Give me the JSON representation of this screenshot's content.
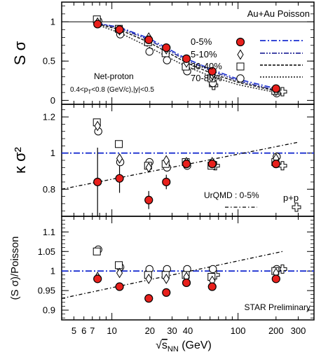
{
  "chart_data": {
    "type": "scatter",
    "x_axis": {
      "label_root": "√",
      "label_s": "s",
      "label_sub": "NN",
      "label_unit": "(GeV)",
      "scale": "log",
      "range": [
        4,
        400
      ],
      "ticks": [
        5,
        6,
        7,
        10,
        20,
        30,
        40,
        100,
        200,
        300
      ],
      "tick_labels": [
        "5",
        "6",
        "7",
        "10",
        "20",
        "30",
        "40",
        "100",
        "200",
        "300"
      ]
    },
    "panels": [
      {
        "id": "s-sigma",
        "ylabel": "S σ",
        "ylim": [
          -0.05,
          1.25
        ],
        "yticks": [
          0,
          0.5,
          1
        ],
        "ytick_labels": [
          "0",
          "0.5",
          "1"
        ],
        "reference_line": {
          "y": 1.0,
          "name": "Poisson",
          "color": "#000000"
        },
        "annotations": {
          "system": "Au+Au Poisson",
          "particle": "Net-proton",
          "cuts": "0.4<pT<0.8 (GeV/c),|y|<0.5"
        },
        "legend": {
          "entries": [
            "0-5%",
            "5-10%",
            "30-40%",
            "70-80%"
          ],
          "markers": [
            "filled-circle",
            "diamond",
            "square",
            "open-circle"
          ],
          "poisson_styles": [
            "dash-dot-blue",
            "dash-dot-dot",
            "dashed",
            "dotted"
          ]
        },
        "series": [
          {
            "name": "0-5%",
            "marker": "filled-circle",
            "x": [
              7.7,
              11.5,
              19.6,
              27,
              39,
              62.4,
              200
            ],
            "y": [
              0.97,
              0.9,
              0.77,
              0.67,
              0.53,
              0.37,
              0.15
            ]
          },
          {
            "name": "5-10%",
            "marker": "diamond",
            "x": [
              7.7,
              11.5,
              19.6,
              27,
              39,
              62.4,
              200
            ],
            "y": [
              0.99,
              0.89,
              0.8,
              0.65,
              0.48,
              0.32,
              0.12
            ]
          },
          {
            "name": "30-40%",
            "marker": "square",
            "x": [
              7.7,
              11.5,
              19.6,
              27,
              39,
              62.4,
              200
            ],
            "y": [
              1.03,
              0.91,
              0.74,
              0.6,
              0.43,
              0.28,
              0.12
            ]
          },
          {
            "name": "70-80%",
            "marker": "open-circle",
            "x": [
              7.7,
              11.5,
              19.6,
              27,
              39,
              62.4,
              200
            ],
            "y": [
              1.01,
              0.84,
              0.62,
              0.51,
              0.37,
              0.22,
              0.09
            ]
          },
          {
            "name": "p+p",
            "marker": "cross",
            "x": [
              64,
              225
            ],
            "y": [
              0.19,
              0.11
            ]
          }
        ],
        "poisson_curves": [
          {
            "style": "dash-dot-blue",
            "x": [
              7.7,
              11.5,
              19.6,
              27,
              39,
              62.4,
              100,
              200
            ],
            "y": [
              0.98,
              0.93,
              0.79,
              0.67,
              0.53,
              0.39,
              0.27,
              0.15
            ]
          },
          {
            "style": "dash-dot-dot",
            "x": [
              7.7,
              11.5,
              19.6,
              27,
              39,
              62.4,
              100,
              200
            ],
            "y": [
              0.98,
              0.92,
              0.77,
              0.65,
              0.51,
              0.37,
              0.25,
              0.13
            ]
          },
          {
            "style": "dashed",
            "x": [
              7.7,
              11.5,
              19.6,
              27,
              39,
              62.4,
              100,
              200
            ],
            "y": [
              0.97,
              0.9,
              0.74,
              0.62,
              0.48,
              0.34,
              0.23,
              0.12
            ]
          },
          {
            "style": "dotted",
            "x": [
              7.7,
              11.5,
              19.6,
              27,
              39,
              62.4,
              100,
              200
            ],
            "y": [
              0.96,
              0.86,
              0.68,
              0.56,
              0.43,
              0.3,
              0.2,
              0.1
            ]
          }
        ]
      },
      {
        "id": "kappa-sigma2",
        "ylabel": "κ σ²",
        "ylim": [
          0.65,
          1.27
        ],
        "yticks": [
          0.8,
          1.0,
          1.2
        ],
        "ytick_labels": [
          "0.8",
          "1",
          "1.2"
        ],
        "reference_line": {
          "y": 1.0,
          "name": "Poisson",
          "color": "#1a2fd0"
        },
        "annotations": {
          "urqmd": "UrQMD : 0-5%",
          "pp": "p+p"
        },
        "series": [
          {
            "name": "0-5%",
            "marker": "filled-circle",
            "x": [
              7.7,
              11.5,
              19.6,
              27,
              39,
              62.4,
              200
            ],
            "y": [
              0.84,
              0.86,
              0.74,
              0.84,
              0.94,
              0.94,
              0.94
            ]
          },
          {
            "name": "5-10%",
            "marker": "diamond",
            "x": [
              7.7,
              11.5,
              19.6,
              27,
              39,
              62.4,
              200
            ],
            "y": [
              1.15,
              0.97,
              0.92,
              0.96,
              0.95,
              0.95,
              0.97
            ]
          },
          {
            "name": "30-40%",
            "marker": "square",
            "x": [
              7.7,
              11.5,
              19.6,
              27,
              39,
              62.4,
              200
            ],
            "y": [
              1.17,
              1.05,
              0.93,
              0.94,
              0.95,
              0.93,
              0.95
            ]
          },
          {
            "name": "70-80%",
            "marker": "open-circle",
            "x": [
              7.7,
              11.5,
              19.6,
              27,
              39,
              62.4,
              200
            ],
            "y": [
              1.12,
              0.95,
              0.95,
              0.92,
              0.93,
              0.94,
              0.98
            ]
          },
          {
            "name": "p+p",
            "marker": "cross",
            "x": [
              66,
              225
            ],
            "y": [
              0.93,
              0.93
            ]
          }
        ],
        "error_bars_0_5": [
          0.19,
          0.08,
          0.05,
          0.04,
          0.03,
          0.03,
          0.02
        ],
        "urqmd_line": {
          "x": [
            4,
            300
          ],
          "y": [
            0.8,
            1.06
          ]
        }
      },
      {
        "id": "s-sigma-over-poisson",
        "ylabel": "(S σ)/Poisson",
        "ylim": [
          0.875,
          1.14
        ],
        "yticks": [
          0.9,
          0.95,
          1.0,
          1.05,
          1.1
        ],
        "ytick_labels": [
          "0.9",
          "0.95",
          "1",
          "1.05",
          "1.1"
        ],
        "reference_line": {
          "y": 1.0,
          "name": "Poisson",
          "color": "#1a2fd0"
        },
        "annotations": {
          "preliminary": "STAR Preliminary"
        },
        "series": [
          {
            "name": "0-5%",
            "marker": "filled-circle",
            "x": [
              7.7,
              11.5,
              19.6,
              27,
              39,
              62.4,
              200
            ],
            "y": [
              0.98,
              0.96,
              0.93,
              0.945,
              0.97,
              0.96,
              0.98
            ]
          },
          {
            "name": "5-10%",
            "marker": "diamond",
            "x": [
              7.7,
              11.5,
              19.6,
              27,
              39,
              62.4,
              200
            ],
            "y": [
              0.985,
              0.995,
              0.98,
              0.98,
              0.985,
              0.975,
              0.995
            ]
          },
          {
            "name": "30-40%",
            "marker": "square",
            "x": [
              7.7,
              11.5,
              19.6,
              27,
              39,
              62.4,
              200
            ],
            "y": [
              1.05,
              1.015,
              0.99,
              0.99,
              0.99,
              0.985,
              1.0
            ]
          },
          {
            "name": "70-80%",
            "marker": "open-circle",
            "x": [
              7.7,
              11.5,
              19.6,
              27,
              39,
              62.4,
              200
            ],
            "y": [
              1.055,
              1.01,
              1.005,
              1.005,
              1.005,
              1.005,
              1.005
            ]
          },
          {
            "name": "p+p",
            "marker": "cross",
            "x": [
              66,
              225
            ],
            "y": [
              0.99,
              1.005
            ]
          }
        ],
        "urqmd_line": {
          "x": [
            4,
            225
          ],
          "y": [
            0.93,
            1.05
          ]
        }
      }
    ]
  }
}
